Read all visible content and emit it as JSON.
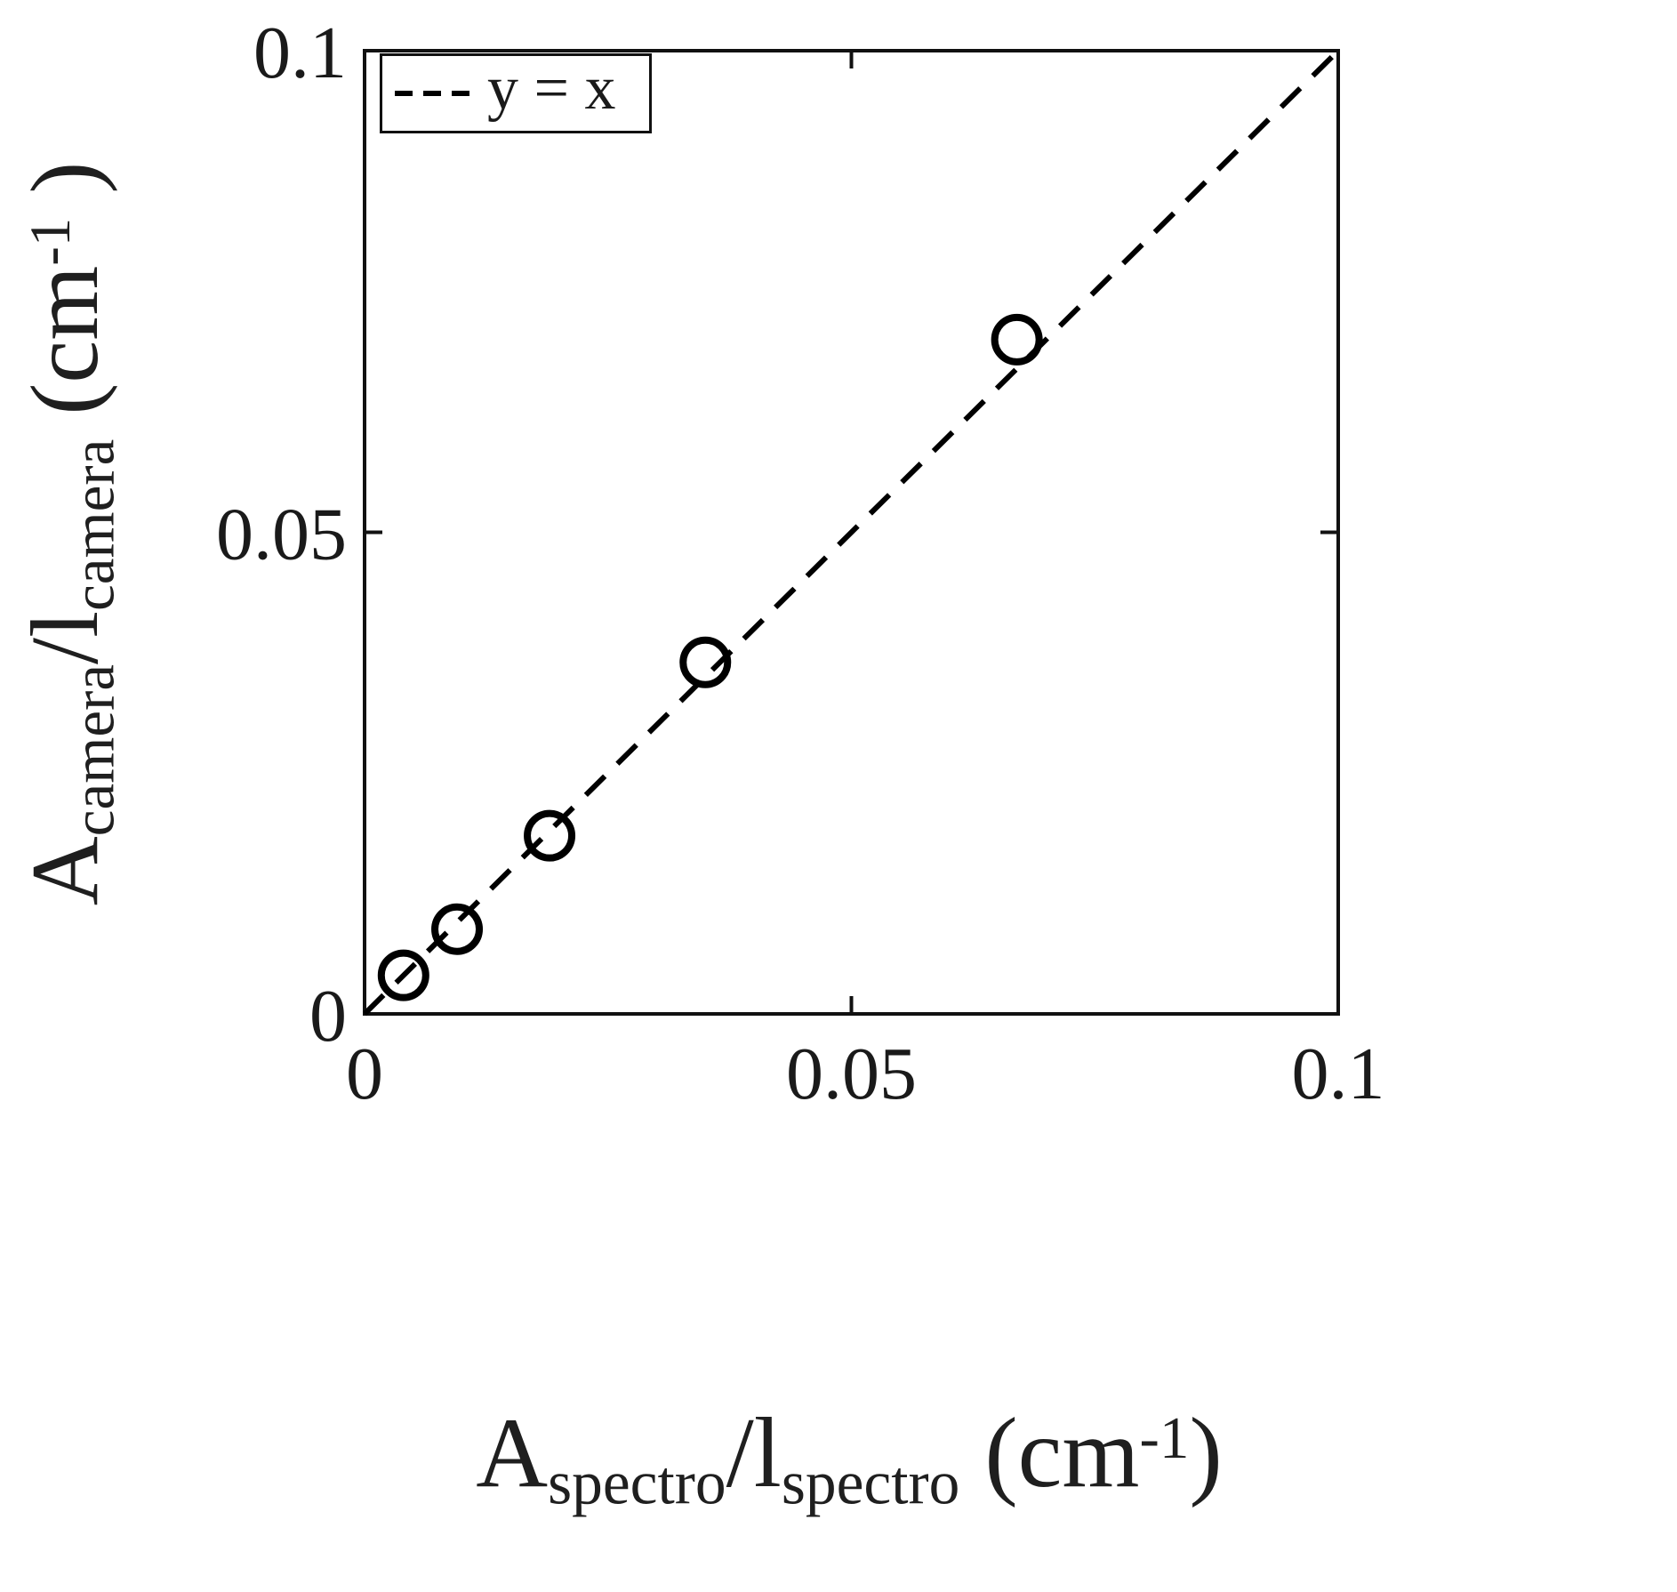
{
  "figure": {
    "background": "#ffffff",
    "foreground": "#1a1a1a"
  },
  "chart_data": {
    "type": "scatter",
    "title": "",
    "xlabel": "A_spectro / l_spectro (cm^-1)",
    "ylabel": "A_camera / l_camera (cm^-1)",
    "xlim": [
      0,
      0.1
    ],
    "ylim": [
      0,
      0.1
    ],
    "x_ticks": [
      0,
      0.05,
      0.1
    ],
    "x_tick_labels": [
      "0",
      "0.05",
      "0.1"
    ],
    "y_ticks": [
      0,
      0.05,
      0.1
    ],
    "y_tick_labels": [
      "0",
      "0.05",
      "0.1"
    ],
    "grid": false,
    "box": true,
    "marker": "open-circle",
    "marker_color": "#000000",
    "points": [
      {
        "x": 0.004,
        "y": 0.004
      },
      {
        "x": 0.0095,
        "y": 0.0088
      },
      {
        "x": 0.019,
        "y": 0.0185
      },
      {
        "x": 0.035,
        "y": 0.0365
      },
      {
        "x": 0.067,
        "y": 0.07
      }
    ],
    "reference_line": {
      "label": "y = x",
      "style": "dashed",
      "color": "#000000",
      "x": [
        0,
        0.1
      ],
      "y": [
        0,
        0.1
      ]
    },
    "legend": {
      "position": "top-left",
      "entries": [
        {
          "label": "y = x",
          "style": "dashed"
        }
      ]
    }
  },
  "axis_labels": {
    "y": {
      "base1": "A",
      "sub1": "camera",
      "base2": "/l",
      "sub2": "camera",
      "unit_open": " (cm",
      "sup": "-1",
      "unit_close": " )"
    },
    "x": {
      "base1": "A",
      "sub1": "spectro",
      "base2": "/l",
      "sub2": "spectro",
      "unit_open": " (cm",
      "sup": "-1",
      "unit_close": ")"
    }
  }
}
